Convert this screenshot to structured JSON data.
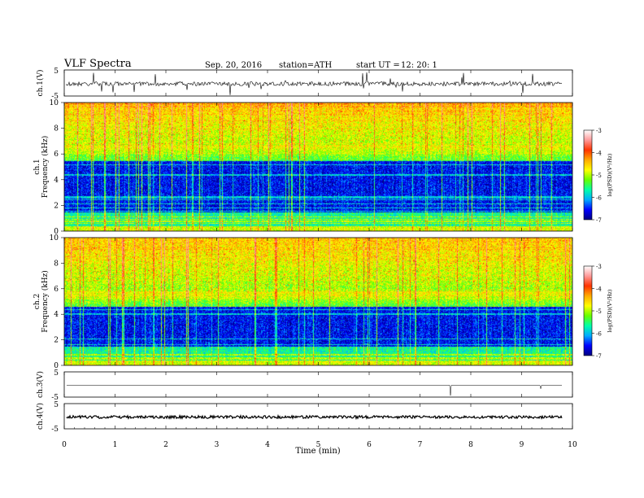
{
  "header": {
    "title": "VLF  Spectra",
    "date": "Sep. 20, 2016",
    "station": "station=ATH",
    "start_label": "start  UT  =",
    "start_value": "12: 20: 1"
  },
  "chart_data": {
    "type": "spectrogram",
    "xlabel": "Time  (min)",
    "xlim": [
      0,
      10
    ],
    "xticks": [
      "0",
      "1",
      "2",
      "3",
      "4",
      "5",
      "6",
      "7",
      "8",
      "9",
      "10"
    ],
    "panels": [
      {
        "id": "ch1-waveform",
        "type": "line",
        "ylabel": "ch.1(V)",
        "ylim": [
          -5,
          5
        ],
        "yticks": [
          "5",
          "-5"
        ]
      },
      {
        "id": "ch1-spectrogram",
        "type": "heatmap",
        "ylabel_line1": "ch.1",
        "ylabel_line2": "Frequency  (kHz)",
        "ylim": [
          0,
          10
        ],
        "yticks": [
          "0",
          "2",
          "4",
          "6",
          "8",
          "10"
        ],
        "blue_band_khz": [
          1.5,
          5.5
        ]
      },
      {
        "id": "ch2-spectrogram",
        "type": "heatmap",
        "ylabel_line1": "ch.2",
        "ylabel_line2": "Frequency  (kHz)",
        "ylim": [
          0,
          10
        ],
        "yticks": [
          "0",
          "2",
          "4",
          "6",
          "8",
          "10"
        ],
        "blue_band_khz": [
          1.5,
          4.6
        ]
      },
      {
        "id": "ch3-waveform",
        "type": "line",
        "ylabel": "ch.3(V)",
        "ylim": [
          -5,
          5
        ],
        "yticks": [
          "5",
          "-5"
        ]
      },
      {
        "id": "ch4-waveform",
        "type": "line",
        "ylabel": "ch.4(V)",
        "ylim": [
          -5,
          5
        ],
        "yticks": [
          "5",
          "-5"
        ]
      }
    ],
    "colorbar": {
      "label": "log(PSD)(V²/Hz)",
      "range": [
        -7,
        -3
      ],
      "ticks": [
        "-3",
        "-4",
        "-5",
        "-6",
        "-7"
      ],
      "colors": [
        "#000080",
        "#0000ff",
        "#00aaff",
        "#00ffaa",
        "#66ff00",
        "#ffff00",
        "#ffaa00",
        "#ff3300",
        "#ff9999",
        "#ffffff"
      ]
    }
  }
}
